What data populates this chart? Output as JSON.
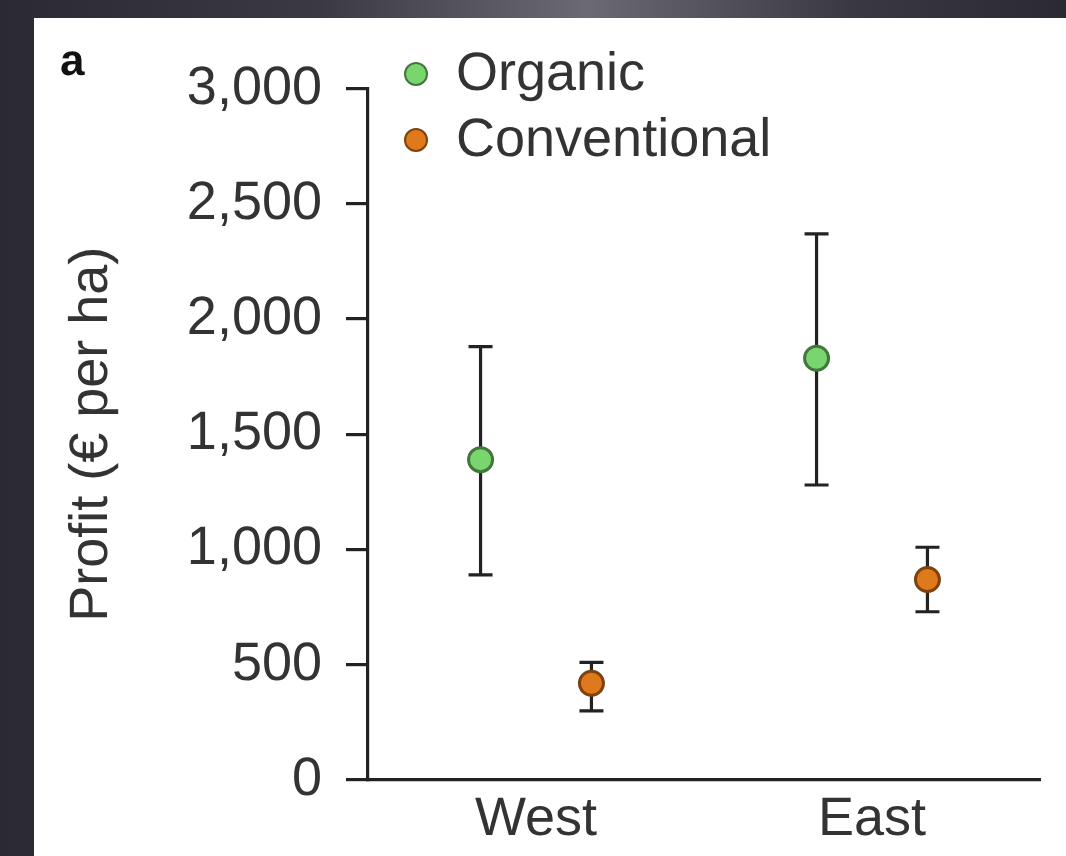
{
  "chart_data": {
    "type": "scatter",
    "title": "a",
    "ylabel": "Profit (€ per ha)",
    "categories": [
      "West",
      "East"
    ],
    "series": [
      {
        "name": "Organic",
        "color": "#79d66f",
        "values": [
          1390,
          1830
        ],
        "errors": [
          [
            890,
            1880
          ],
          [
            1280,
            2370
          ]
        ]
      },
      {
        "name": "Conventional",
        "color": "#e0791c",
        "values": [
          420,
          870
        ],
        "errors": [
          [
            300,
            510
          ],
          [
            730,
            1010
          ]
        ]
      }
    ],
    "ylim": [
      0,
      3000
    ],
    "yticks": [
      0,
      500,
      {
        "value": 1000,
        "label": "1,000"
      },
      {
        "value": 1500,
        "label": "1,500"
      },
      {
        "value": 2000,
        "label": "2,000"
      },
      {
        "value": 2500,
        "label": "2,500"
      },
      {
        "value": 3000,
        "label": "3,000"
      }
    ],
    "grid": false,
    "legend": "top left",
    "marker": "circle"
  }
}
